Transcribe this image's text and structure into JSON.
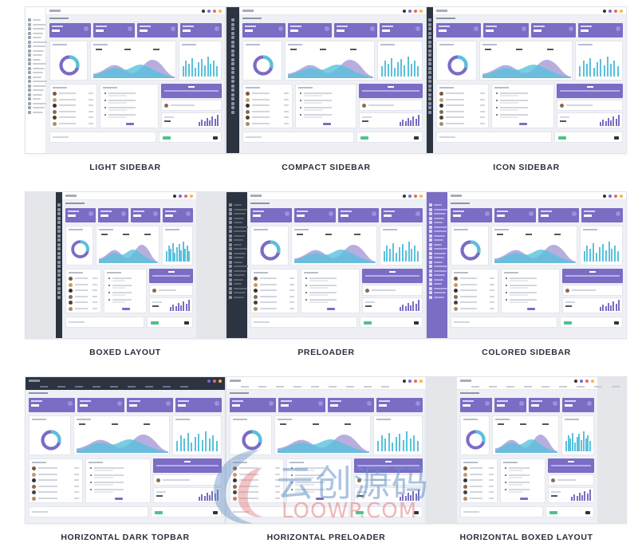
{
  "layouts": [
    {
      "caption": "LIGHT SIDEBAR",
      "variant": "light"
    },
    {
      "caption": "COMPACT SIDEBAR",
      "variant": "compact"
    },
    {
      "caption": "ICON SIDEBAR",
      "variant": "icon"
    },
    {
      "caption": "BOXED LAYOUT",
      "variant": "boxed"
    },
    {
      "caption": "PRELOADER",
      "variant": "preloader"
    },
    {
      "caption": "COLORED SIDEBAR",
      "variant": "colored"
    },
    {
      "caption": "HORIZONTAL DARK TOPBAR",
      "variant": "hdark"
    },
    {
      "caption": "HORIZONTAL PRELOADER",
      "variant": "hpre"
    },
    {
      "caption": "HORIZONTAL BOXED LAYOUT",
      "variant": "hboxed"
    }
  ],
  "colors": {
    "accent": "#7b6cc4",
    "chart_cyan": "#59c1dc",
    "dark_sidebar": "#2c3341",
    "caption_text": "#2b2f3a"
  },
  "watermark": {
    "text": "云创源码",
    "url": "LOOWP.COM"
  }
}
